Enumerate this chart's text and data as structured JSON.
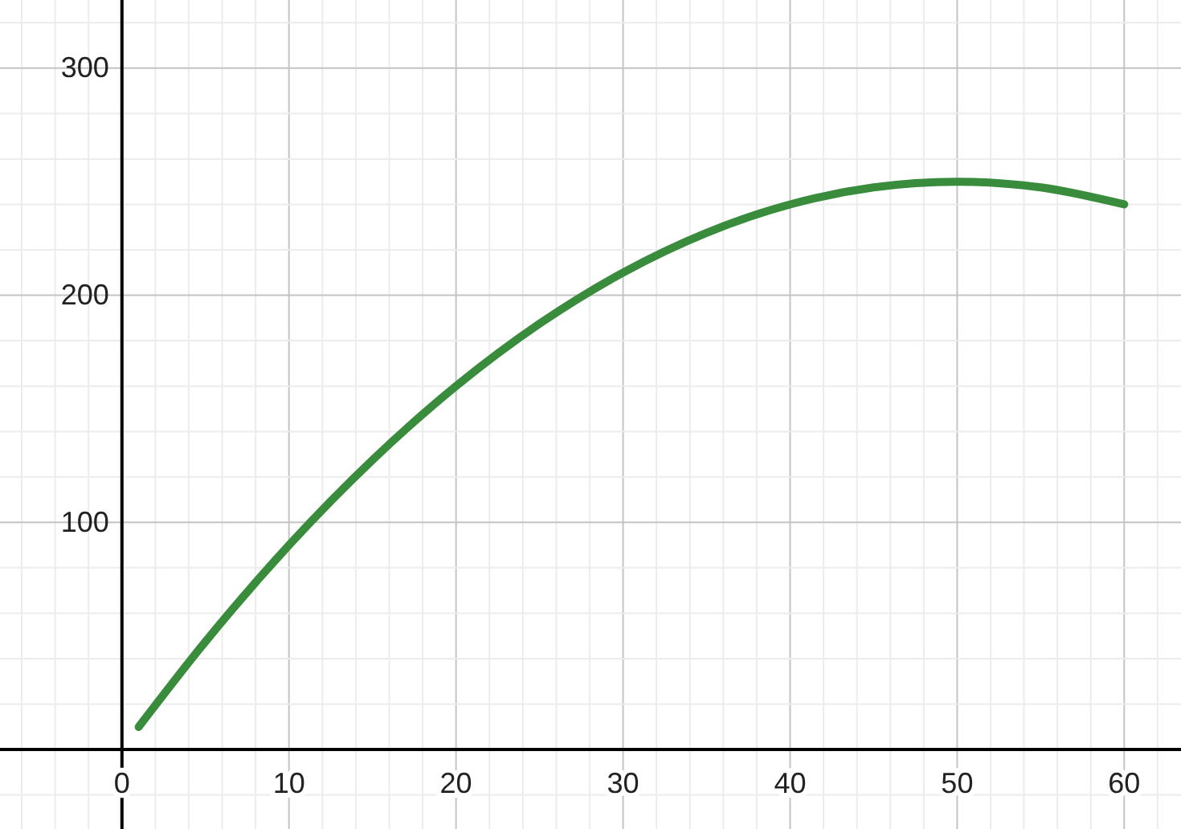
{
  "chart_data": {
    "type": "line",
    "x": [
      1,
      5,
      10,
      15,
      20,
      25,
      30,
      35,
      40,
      45,
      50,
      55,
      60
    ],
    "series": [
      {
        "color": "#388c3c",
        "values": [
          9.9,
          47.5,
          90,
          127.5,
          160,
          187.5,
          210,
          227.5,
          240,
          247.5,
          250,
          247.5,
          240
        ]
      }
    ],
    "xlim": [
      -7.3,
      63.4
    ],
    "ylim": [
      -35,
      330
    ],
    "xticks": [
      {
        "value": -6,
        "label": null
      },
      {
        "value": -4,
        "label": null
      },
      {
        "value": -2,
        "label": null
      },
      0,
      {
        "value": 2,
        "label": null
      },
      {
        "value": 4,
        "label": null
      },
      {
        "value": 6,
        "label": null
      },
      {
        "value": 8,
        "label": null
      },
      10,
      {
        "value": 12,
        "label": null
      },
      {
        "value": 14,
        "label": null
      },
      {
        "value": 16,
        "label": null
      },
      {
        "value": 18,
        "label": null
      },
      20,
      {
        "value": 22,
        "label": null
      },
      {
        "value": 24,
        "label": null
      },
      {
        "value": 26,
        "label": null
      },
      {
        "value": 28,
        "label": null
      },
      30,
      {
        "value": 32,
        "label": null
      },
      {
        "value": 34,
        "label": null
      },
      {
        "value": 36,
        "label": null
      },
      {
        "value": 38,
        "label": null
      },
      40,
      {
        "value": 42,
        "label": null
      },
      {
        "value": 44,
        "label": null
      },
      {
        "value": 46,
        "label": null
      },
      {
        "value": 48,
        "label": null
      },
      50,
      {
        "value": 52,
        "label": null
      },
      {
        "value": 54,
        "label": null
      },
      {
        "value": 56,
        "label": null
      },
      {
        "value": 58,
        "label": null
      },
      60,
      {
        "value": 62,
        "label": null
      }
    ],
    "yticks": [
      {
        "value": -20,
        "label": null
      },
      {
        "value": 20,
        "label": null
      },
      {
        "value": 40,
        "label": null
      },
      {
        "value": 60,
        "label": null
      },
      {
        "value": 80,
        "label": null
      },
      100,
      {
        "value": 120,
        "label": null
      },
      {
        "value": 140,
        "label": null
      },
      {
        "value": 160,
        "label": null
      },
      {
        "value": 180,
        "label": null
      },
      200,
      {
        "value": 220,
        "label": null
      },
      {
        "value": 240,
        "label": null
      },
      {
        "value": 260,
        "label": null
      },
      {
        "value": 280,
        "label": null
      },
      300,
      {
        "value": 320,
        "label": null
      }
    ],
    "grid": true,
    "marker": "none",
    "line_style": "solid"
  }
}
